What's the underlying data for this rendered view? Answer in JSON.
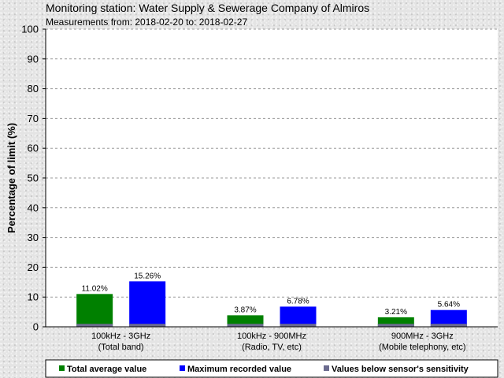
{
  "header": {
    "title": "Monitoring station: Water Supply & Sewerage Company of Almiros",
    "subtitle": "Measurements from: 2018-02-20 to: 2018-02-27"
  },
  "chart_data": {
    "type": "bar",
    "ylabel": "Percentage of limit (%)",
    "ylim": [
      0,
      100
    ],
    "yticks": [
      0,
      10,
      20,
      30,
      40,
      50,
      60,
      70,
      80,
      90,
      100
    ],
    "grid": true,
    "categories": [
      {
        "line1": "100kHz - 3GHz",
        "line2": "(Total band)"
      },
      {
        "line1": "100kHz - 900MHz",
        "line2": "(Radio, TV, etc)"
      },
      {
        "line1": "900MHz - 3GHz",
        "line2": "(Mobile telephony, etc)"
      }
    ],
    "series": [
      {
        "name": "Total average value",
        "color": "#008000",
        "values": [
          11.02,
          3.87,
          3.21
        ],
        "labels": [
          "11.02%",
          "3.87%",
          "3.21%"
        ]
      },
      {
        "name": "Maximum recorded value",
        "color": "#0000ff",
        "values": [
          15.26,
          6.78,
          5.64
        ],
        "labels": [
          "15.26%",
          "6.78%",
          "5.64%"
        ]
      }
    ],
    "sensitivity": {
      "name": "Values below sensor's sensitivity",
      "color": "#6b6b8e",
      "value": 1.0
    },
    "legend_position": "bottom"
  }
}
